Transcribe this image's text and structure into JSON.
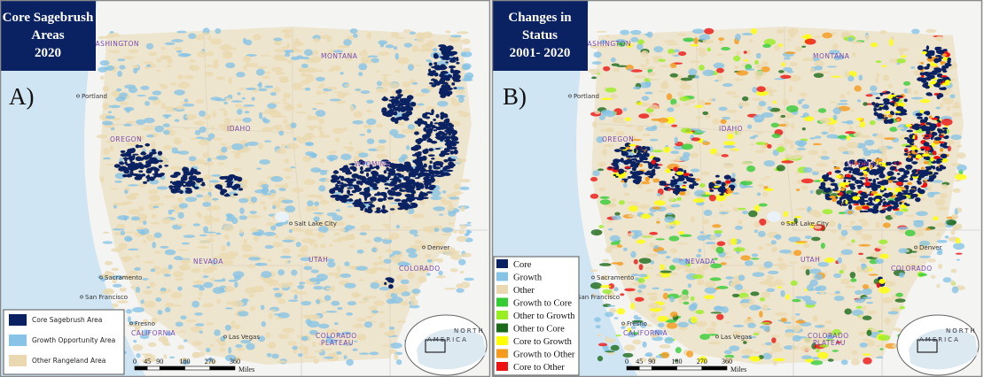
{
  "panels": [
    {
      "title": [
        "Core Sagebrush",
        "Areas",
        "2020"
      ],
      "label": "A)",
      "places": [
        "WASHINGTON",
        "MONTANA",
        "Portland",
        "OREGON",
        "IDAHO",
        "WYOMING",
        "Salt Lake City",
        "UTAH",
        "Denver",
        "COLORADO",
        "NEVADA",
        "Sacramento",
        "San Francisco",
        "Fresno",
        "CALIFORNIA",
        "Las Vegas",
        "COLORADO",
        "PLATEAU"
      ],
      "legend": [
        {
          "label": "Core Sagebrush Area",
          "color": "#0b2262"
        },
        {
          "label": "Growth Opportunity Area",
          "color": "#86c3e6"
        },
        {
          "label": "Other Rangeland Area",
          "color": "#ead9b0"
        }
      ],
      "scale": {
        "ticks": [
          0,
          45,
          90,
          180,
          270,
          360
        ],
        "unit": "Miles"
      },
      "inset": [
        "NORTH",
        "AMERICA"
      ]
    },
    {
      "title": [
        "Changes in",
        "Status",
        "2001- 2020"
      ],
      "label": "B)",
      "places": [
        "WASHINGTON",
        "MONTANA",
        "Portland",
        "OREGON",
        "IDAHO",
        "WYOMING",
        "Salt Lake City",
        "UTAH",
        "Denver",
        "COLORADO",
        "NEVADA",
        "Sacramento",
        "San Francisco",
        "Fresno",
        "CALIFORNIA",
        "Las Vegas",
        "COLORADO",
        "PLATEAU"
      ],
      "legend": [
        {
          "label": "Core",
          "color": "#0b2262"
        },
        {
          "label": "Growth",
          "color": "#86c3e6"
        },
        {
          "label": "Other",
          "color": "#ead9b0"
        },
        {
          "label": "Growth to Core",
          "color": "#33cc33"
        },
        {
          "label": "Other to Growth",
          "color": "#99ee22"
        },
        {
          "label": "Other to Core",
          "color": "#1a6a1a"
        },
        {
          "label": "Core to Growth",
          "color": "#ffff00"
        },
        {
          "label": "Growth to Other",
          "color": "#f59a1a"
        },
        {
          "label": "Core to Other",
          "color": "#ee1111"
        }
      ],
      "scale": {
        "ticks": [
          0,
          45,
          90,
          180,
          270,
          360
        ],
        "unit": "Miles"
      },
      "inset": [
        "NORTH",
        "AMERICA"
      ]
    }
  ]
}
